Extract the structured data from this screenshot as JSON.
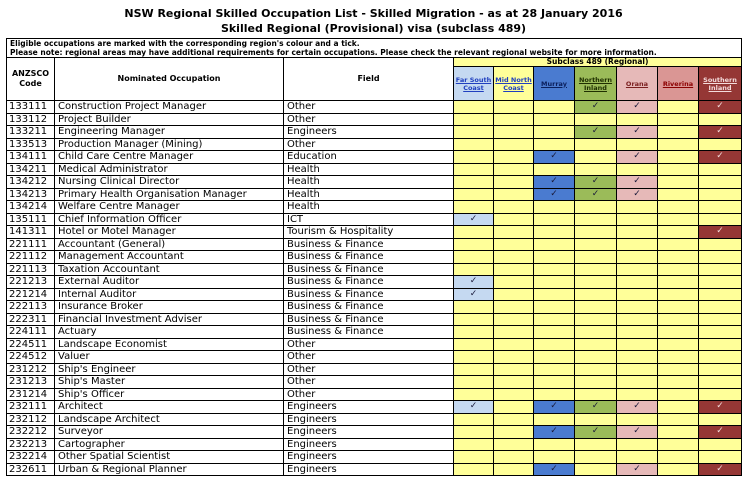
{
  "header": {
    "title": "NSW Regional Skilled Occupation List - Skilled Migration - as at 28 January 2016",
    "subtitle": "Skilled Regional (Provisional) visa (subclass 489)"
  },
  "notes": [
    "Eligible occupations are marked with the corresponding region's colour and a tick.",
    "Please note: regional areas may have additional requirements for certain occupations. Please check the relevant regional website for more information."
  ],
  "table": {
    "columns": [
      "ANZSCO Code",
      "Nominated Occupation",
      "Field"
    ],
    "group": "Subclass 489 (Regional)",
    "tick": "✓",
    "regions": [
      {
        "name": "Far South Coast",
        "color": "#c5d9f1"
      },
      {
        "name": "Mid North Coast",
        "color": "#ffff99"
      },
      {
        "name": "Murray",
        "color": "#4a7bd0"
      },
      {
        "name": "Northern Inland",
        "color": "#9bbb59"
      },
      {
        "name": "Orana",
        "color": "#e6b9b8"
      },
      {
        "name": "Riverina",
        "color": "#da9694"
      },
      {
        "name": "Southern Inland",
        "color": "#953735"
      }
    ],
    "rows": [
      {
        "code": "133111",
        "occupation": "Construction Project Manager",
        "field": "Other",
        "eligible": [
          false,
          false,
          false,
          true,
          true,
          false,
          true
        ]
      },
      {
        "code": "133112",
        "occupation": "Project Builder",
        "field": "Other",
        "eligible": [
          false,
          false,
          false,
          false,
          false,
          false,
          false
        ]
      },
      {
        "code": "133211",
        "occupation": "Engineering Manager",
        "field": "Engineers",
        "eligible": [
          false,
          false,
          false,
          true,
          true,
          false,
          true
        ]
      },
      {
        "code": "133513",
        "occupation": "Production Manager (Mining)",
        "field": "Other",
        "eligible": [
          false,
          false,
          false,
          false,
          false,
          false,
          false
        ]
      },
      {
        "code": "134111",
        "occupation": "Child Care Centre Manager",
        "field": "Education",
        "eligible": [
          false,
          false,
          true,
          false,
          true,
          false,
          true
        ]
      },
      {
        "code": "134211",
        "occupation": "Medical Administrator",
        "field": "Health",
        "eligible": [
          false,
          false,
          false,
          false,
          false,
          false,
          false
        ]
      },
      {
        "code": "134212",
        "occupation": "Nursing Clinical Director",
        "field": "Health",
        "eligible": [
          false,
          false,
          true,
          true,
          true,
          false,
          false
        ]
      },
      {
        "code": "134213",
        "occupation": "Primary Health Organisation Manager",
        "field": "Health",
        "eligible": [
          false,
          false,
          true,
          true,
          true,
          false,
          false
        ]
      },
      {
        "code": "134214",
        "occupation": "Welfare Centre Manager",
        "field": "Health",
        "eligible": [
          false,
          false,
          false,
          false,
          false,
          false,
          false
        ]
      },
      {
        "code": "135111",
        "occupation": "Chief Information Officer",
        "field": "ICT",
        "eligible": [
          true,
          false,
          false,
          false,
          false,
          false,
          false
        ]
      },
      {
        "code": "141311",
        "occupation": "Hotel or Motel Manager",
        "field": "Tourism & Hospitality",
        "eligible": [
          false,
          false,
          false,
          false,
          false,
          false,
          true
        ]
      },
      {
        "code": "221111",
        "occupation": "Accountant (General)",
        "field": "Business & Finance",
        "eligible": [
          false,
          false,
          false,
          false,
          false,
          false,
          false
        ]
      },
      {
        "code": "221112",
        "occupation": "Management Accountant",
        "field": "Business & Finance",
        "eligible": [
          false,
          false,
          false,
          false,
          false,
          false,
          false
        ]
      },
      {
        "code": "221113",
        "occupation": "Taxation Accountant",
        "field": "Business & Finance",
        "eligible": [
          false,
          false,
          false,
          false,
          false,
          false,
          false
        ]
      },
      {
        "code": "221213",
        "occupation": "External Auditor",
        "field": "Business & Finance",
        "eligible": [
          true,
          false,
          false,
          false,
          false,
          false,
          false
        ]
      },
      {
        "code": "221214",
        "occupation": "Internal Auditor",
        "field": "Business & Finance",
        "eligible": [
          true,
          false,
          false,
          false,
          false,
          false,
          false
        ]
      },
      {
        "code": "222113",
        "occupation": "Insurance Broker",
        "field": "Business & Finance",
        "eligible": [
          false,
          false,
          false,
          false,
          false,
          false,
          false
        ]
      },
      {
        "code": "222311",
        "occupation": "Financial Investment Adviser",
        "field": "Business & Finance",
        "eligible": [
          false,
          false,
          false,
          false,
          false,
          false,
          false
        ]
      },
      {
        "code": "224111",
        "occupation": "Actuary",
        "field": "Business & Finance",
        "eligible": [
          false,
          false,
          false,
          false,
          false,
          false,
          false
        ]
      },
      {
        "code": "224511",
        "occupation": "Landscape Economist",
        "field": "Other",
        "eligible": [
          false,
          false,
          false,
          false,
          false,
          false,
          false
        ]
      },
      {
        "code": "224512",
        "occupation": "Valuer",
        "field": "Other",
        "eligible": [
          false,
          false,
          false,
          false,
          false,
          false,
          false
        ]
      },
      {
        "code": "231212",
        "occupation": "Ship's Engineer",
        "field": "Other",
        "eligible": [
          false,
          false,
          false,
          false,
          false,
          false,
          false
        ]
      },
      {
        "code": "231213",
        "occupation": "Ship's Master",
        "field": "Other",
        "eligible": [
          false,
          false,
          false,
          false,
          false,
          false,
          false
        ]
      },
      {
        "code": "231214",
        "occupation": "Ship's Officer",
        "field": "Other",
        "eligible": [
          false,
          false,
          false,
          false,
          false,
          false,
          false
        ]
      },
      {
        "code": "232111",
        "occupation": "Architect",
        "field": "Engineers",
        "eligible": [
          true,
          false,
          true,
          true,
          true,
          false,
          true
        ]
      },
      {
        "code": "232112",
        "occupation": "Landscape Architect",
        "field": "Engineers",
        "eligible": [
          false,
          false,
          false,
          false,
          false,
          false,
          false
        ]
      },
      {
        "code": "232212",
        "occupation": "Surveyor",
        "field": "Engineers",
        "eligible": [
          false,
          false,
          true,
          true,
          true,
          false,
          true
        ]
      },
      {
        "code": "232213",
        "occupation": "Cartographer",
        "field": "Engineers",
        "eligible": [
          false,
          false,
          false,
          false,
          false,
          false,
          false
        ]
      },
      {
        "code": "232214",
        "occupation": "Other Spatial Scientist",
        "field": "Engineers",
        "eligible": [
          false,
          false,
          false,
          false,
          false,
          false,
          false
        ]
      },
      {
        "code": "232611",
        "occupation": "Urban & Regional Planner",
        "field": "Engineers",
        "eligible": [
          false,
          false,
          true,
          false,
          true,
          false,
          true
        ]
      }
    ]
  }
}
